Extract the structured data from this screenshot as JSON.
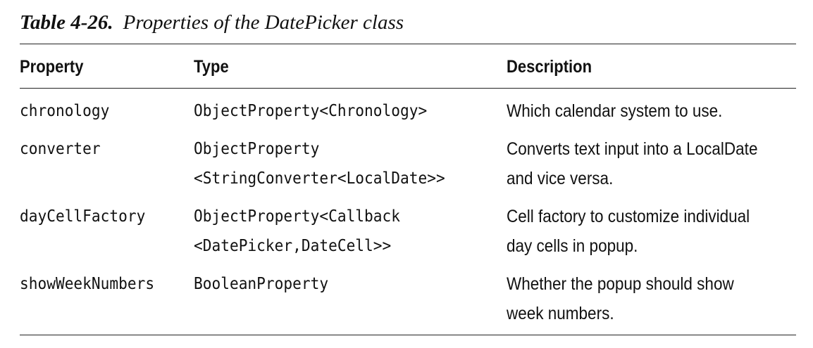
{
  "caption": {
    "number": "Table 4-26.",
    "title": "Properties of the DatePicker class"
  },
  "table": {
    "headers": [
      "Property",
      "Type",
      "Description"
    ],
    "rows": [
      {
        "property": "chronology",
        "type_lines": [
          "ObjectProperty<Chronology>"
        ],
        "description_lines": [
          "Which calendar system to use."
        ]
      },
      {
        "property": "converter",
        "type_lines": [
          "ObjectProperty",
          "<StringConverter<LocalDate>>"
        ],
        "description_lines": [
          "Converts text input into a LocalDate",
          "and vice versa."
        ]
      },
      {
        "property": "dayCellFactory",
        "type_lines": [
          "ObjectProperty<Callback",
          "<DatePicker,DateCell>>"
        ],
        "description_lines": [
          "Cell factory to customize individual",
          "day cells in popup."
        ]
      },
      {
        "property": "showWeekNumbers",
        "type_lines": [
          "BooleanProperty"
        ],
        "description_lines": [
          "Whether the popup should show",
          "week numbers."
        ]
      }
    ]
  }
}
